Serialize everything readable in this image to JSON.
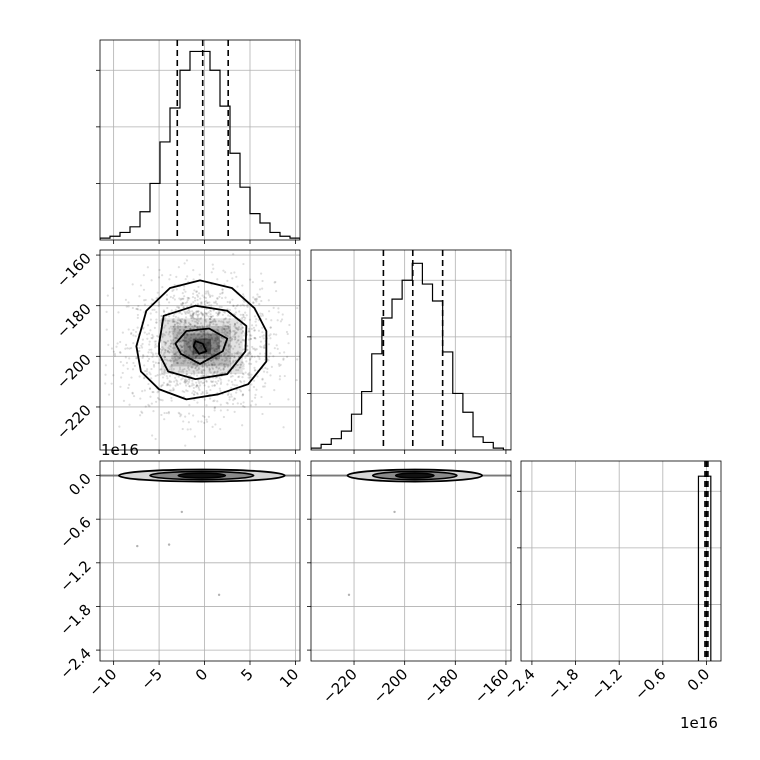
{
  "chart_data": {
    "type": "corner",
    "parameters": [
      {
        "name": "",
        "range": [
          -11.5,
          10.5
        ],
        "ticks": [
          -10,
          -5,
          0,
          5,
          10
        ],
        "tick_labels": [
          "−10",
          "−5",
          "0",
          "5",
          "10"
        ]
      },
      {
        "name": "",
        "range": [
          -237,
          -158
        ],
        "ticks": [
          -220,
          -200,
          -180,
          -160
        ],
        "tick_labels": [
          "−220",
          "−200",
          "−180",
          "−160"
        ]
      },
      {
        "name": "",
        "range": [
          -2.55,
          0.2
        ],
        "scale_label": "1e16",
        "ticks": [
          -2.4,
          -1.8,
          -1.2,
          -0.6,
          0.0
        ],
        "tick_labels": [
          "−2.4",
          "−1.8",
          "−1.2",
          "−0.6",
          "0.0"
        ]
      }
    ],
    "histograms": [
      {
        "param": 0,
        "ymax": 1.05,
        "edges": [
          -11.5,
          -10.4,
          -9.3,
          -8.2,
          -7.1,
          -6.0,
          -4.9,
          -3.8,
          -2.7,
          -1.6,
          -0.5,
          0.6,
          1.7,
          2.8,
          3.9,
          5.0,
          6.1,
          7.2,
          8.3,
          9.4,
          10.5
        ],
        "counts": [
          0.01,
          0.02,
          0.04,
          0.07,
          0.15,
          0.3,
          0.52,
          0.7,
          0.9,
          1.0,
          1.0,
          0.9,
          0.71,
          0.46,
          0.28,
          0.14,
          0.09,
          0.04,
          0.02,
          0.01
        ],
        "quantiles": [
          -3.0,
          -0.2,
          2.6
        ]
      },
      {
        "param": 1,
        "ymax": 1.05,
        "edges": [
          -237,
          -233,
          -229,
          -225,
          -221,
          -217,
          -213,
          -209,
          -205,
          -201,
          -197,
          -193,
          -189,
          -185,
          -181,
          -177,
          -173,
          -169,
          -165,
          -161,
          -157
        ],
        "counts": [
          0.01,
          0.03,
          0.06,
          0.1,
          0.19,
          0.31,
          0.51,
          0.7,
          0.8,
          0.9,
          0.99,
          0.88,
          0.79,
          0.52,
          0.3,
          0.2,
          0.07,
          0.04,
          0.01,
          0.0
        ],
        "quantiles": [
          -208.4,
          -196.8,
          -185.0
        ]
      },
      {
        "param": 2,
        "ymax": 1.05,
        "edges": [
          -0.11,
          -0.02,
          0.06
        ],
        "counts": [
          0.98,
          0.98
        ],
        "quantiles": [
          -0.02,
          0.0,
          0.02
        ]
      }
    ],
    "scatter": [
      {
        "x_param": 0,
        "y_param": 1,
        "center": [
          -0.3,
          -196.0
        ],
        "spread": [
          4.0,
          12.5
        ],
        "contour_levels": [
          [
            [
              -1.2,
              -196
            ],
            [
              -1.0,
              -194
            ],
            [
              -0.2,
              -195
            ],
            [
              0.2,
              -198
            ],
            [
              -0.6,
              -199
            ],
            [
              -1.2,
              -196
            ]
          ],
          [
            [
              -3.2,
              -195
            ],
            [
              -2.0,
              -190
            ],
            [
              0.5,
              -189
            ],
            [
              2.5,
              -193
            ],
            [
              2.0,
              -198
            ],
            [
              -0.5,
              -203
            ],
            [
              -2.6,
              -199
            ],
            [
              -3.2,
              -195
            ]
          ],
          [
            [
              -5.0,
              -195
            ],
            [
              -4.5,
              -184
            ],
            [
              -1.0,
              -180
            ],
            [
              2.5,
              -182
            ],
            [
              4.6,
              -188
            ],
            [
              4.5,
              -198
            ],
            [
              2.5,
              -207
            ],
            [
              -1.0,
              -209
            ],
            [
              -4.0,
              -206
            ],
            [
              -5.0,
              -199
            ],
            [
              -5.0,
              -195
            ]
          ],
          [
            [
              -7.5,
              -196
            ],
            [
              -6.4,
              -182
            ],
            [
              -3.8,
              -173
            ],
            [
              -0.5,
              -170
            ],
            [
              3.0,
              -173
            ],
            [
              5.5,
              -181
            ],
            [
              6.8,
              -190
            ],
            [
              6.8,
              -202
            ],
            [
              4.8,
              -211
            ],
            [
              1.5,
              -215
            ],
            [
              -2.0,
              -217
            ],
            [
              -5.0,
              -213
            ],
            [
              -7.0,
              -206
            ],
            [
              -7.5,
              -196
            ]
          ]
        ]
      },
      {
        "x_param": 0,
        "y_param": 2,
        "center": [
          -0.3,
          0.0
        ],
        "width": 4.8,
        "outliers": [
          [
            -7.4,
            -0.97
          ],
          [
            -3.9,
            -0.95
          ],
          [
            1.6,
            -1.64
          ],
          [
            -2.5,
            -0.5
          ]
        ]
      },
      {
        "x_param": 1,
        "y_param": 2,
        "center": [
          -196.0,
          0.0
        ],
        "width": 14.0,
        "outliers": [
          [
            -222.0,
            -1.64
          ],
          [
            -204.0,
            -0.5
          ]
        ]
      }
    ]
  }
}
